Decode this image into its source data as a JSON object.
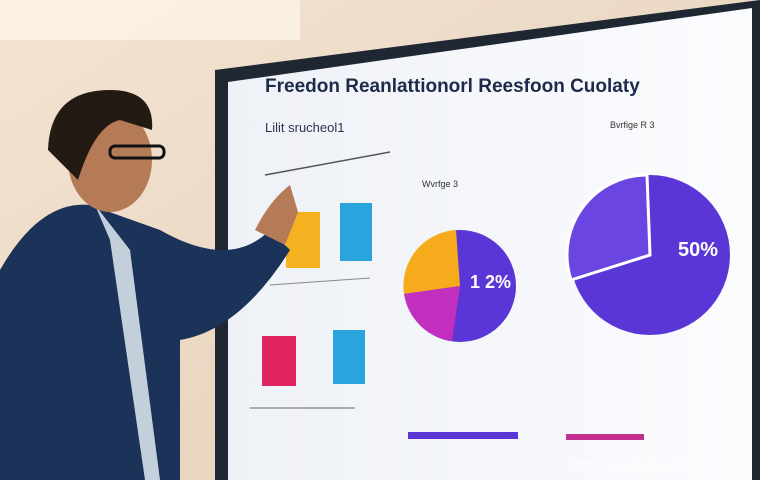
{
  "screen": {
    "title": "Freedon Reanlattionorl Reesfoon Cuolaty",
    "subtitle": "Lilit srucheol1",
    "left_pie": {
      "heading": "Wvrfge 3",
      "label": "1 2%"
    },
    "right_pie": {
      "heading": "Bvrfige R 3",
      "label": "50%"
    }
  },
  "watermark": "https://youtin4u.net"
}
